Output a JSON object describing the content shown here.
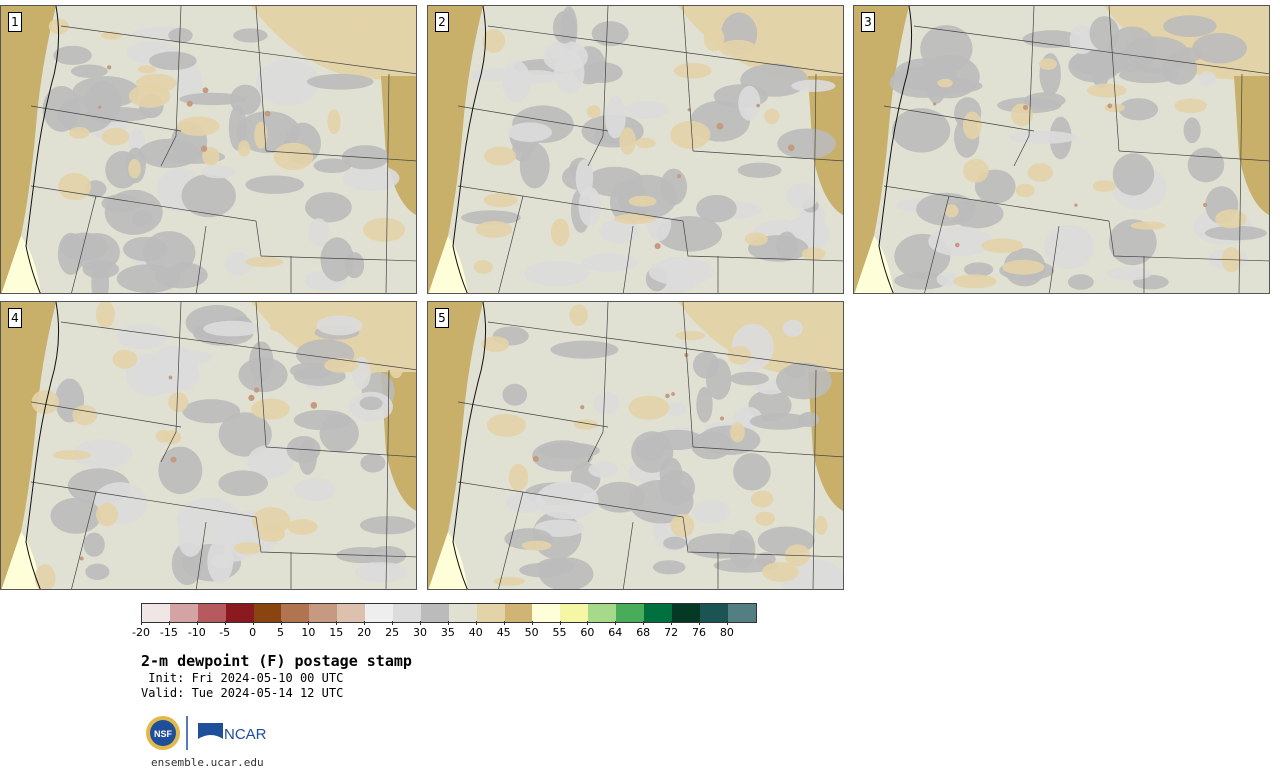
{
  "panels": [
    {
      "label": "1"
    },
    {
      "label": "2"
    },
    {
      "label": "3"
    },
    {
      "label": "4"
    },
    {
      "label": "5"
    }
  ],
  "colorbar": {
    "colors": [
      "#f1e6e6",
      "#d4a3a4",
      "#b75a5e",
      "#8b1a20",
      "#8a4410",
      "#b07450",
      "#c59a80",
      "#ddc0ad",
      "#eeeeee",
      "#dcdcdc",
      "#bbbbbb",
      "#e0e0d3",
      "#e3d3a8",
      "#cfb473",
      "#fefed8",
      "#f6f6a7",
      "#a6d98a",
      "#48ac5b",
      "#00703e",
      "#053926",
      "#1b5453",
      "#537e82"
    ],
    "ticks": [
      "-20",
      "-15",
      "-10",
      "-5",
      "0",
      "5",
      "10",
      "15",
      "20",
      "25",
      "30",
      "35",
      "40",
      "45",
      "50",
      "55",
      "60",
      "64",
      "68",
      "72",
      "76",
      "80"
    ]
  },
  "map_colors": {
    "pacific_tan": "#c8b06a",
    "light_tan": "#e3d3a8",
    "gray": "#bbbbbb",
    "light_gray": "#dcdcdc",
    "pale": "#e0e0d3",
    "yellow": "#fefed8",
    "brown": "#c59a80"
  },
  "header": {
    "title": "2-m dewpoint (F) postage stamp",
    "init": " Init: Fri 2024-05-10 00 UTC",
    "valid": "Valid: Tue 2024-05-14 12 UTC"
  },
  "logos": {
    "nsf": "NSF",
    "ncar": "NCAR"
  },
  "footer": {
    "site": "ensemble.ucar.edu"
  }
}
